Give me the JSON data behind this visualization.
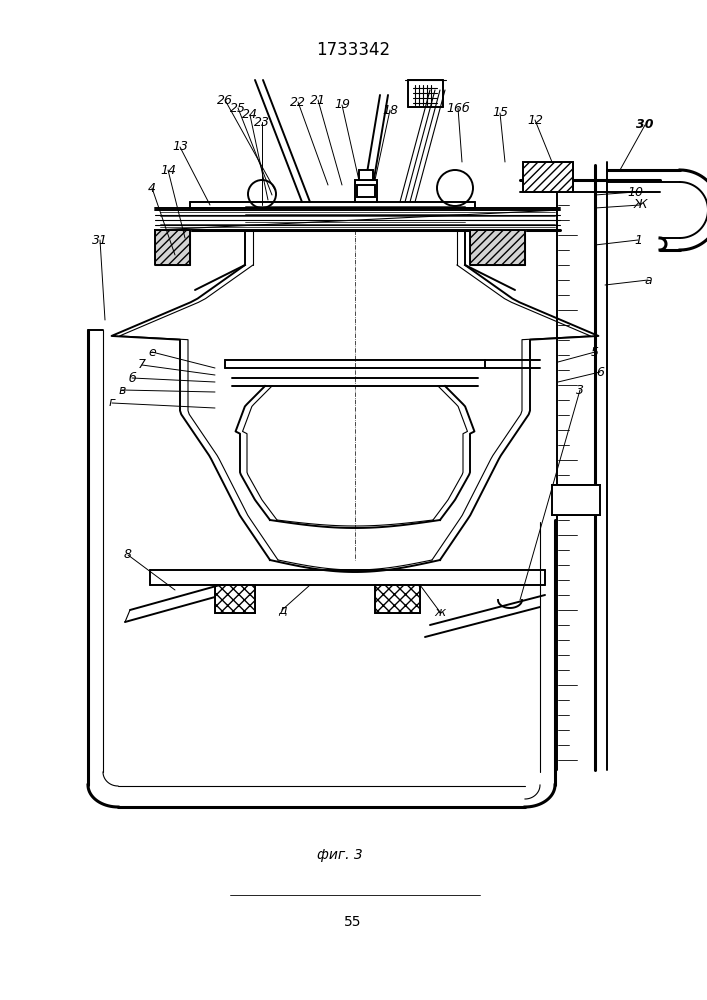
{
  "title": "1733342",
  "fig_label": "фиг. 3",
  "page_number": "55",
  "bg_color": "#ffffff",
  "line_color": "#000000",
  "title_fontsize": 12,
  "label_fontsize": 9,
  "fig_width": 7.07,
  "fig_height": 10.0
}
